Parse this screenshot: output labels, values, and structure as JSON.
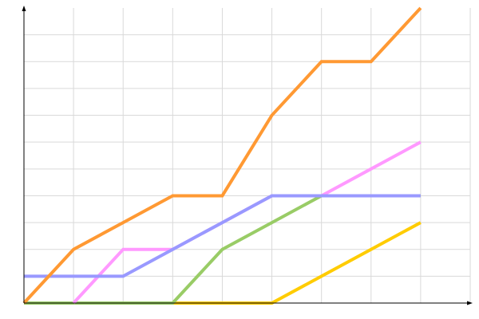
{
  "chart_data": {
    "type": "line",
    "title": "",
    "xlabel": "",
    "ylabel": "",
    "xlim": [
      0,
      9
    ],
    "ylim": [
      0,
      11
    ],
    "grid": true,
    "x": [
      0,
      1,
      2,
      3,
      4,
      5,
      6,
      7,
      8
    ],
    "series": [
      {
        "color": "#ffcc00",
        "values": [
          0,
          0,
          0,
          0,
          0,
          0,
          1,
          2,
          3
        ]
      },
      {
        "color": "#99cc66",
        "values": [
          0,
          0,
          0,
          0,
          2,
          3,
          4,
          4,
          4
        ]
      },
      {
        "color": "#ff99ff",
        "values": [
          null,
          0,
          2,
          2,
          3,
          4,
          4,
          5,
          6
        ]
      },
      {
        "color": "#9999ff",
        "values": [
          1,
          1,
          1,
          2,
          3,
          4,
          4,
          4,
          4
        ]
      },
      {
        "color": "#ff9933",
        "values": [
          0,
          2,
          3,
          4,
          4,
          7,
          9,
          9,
          11
        ]
      }
    ]
  }
}
